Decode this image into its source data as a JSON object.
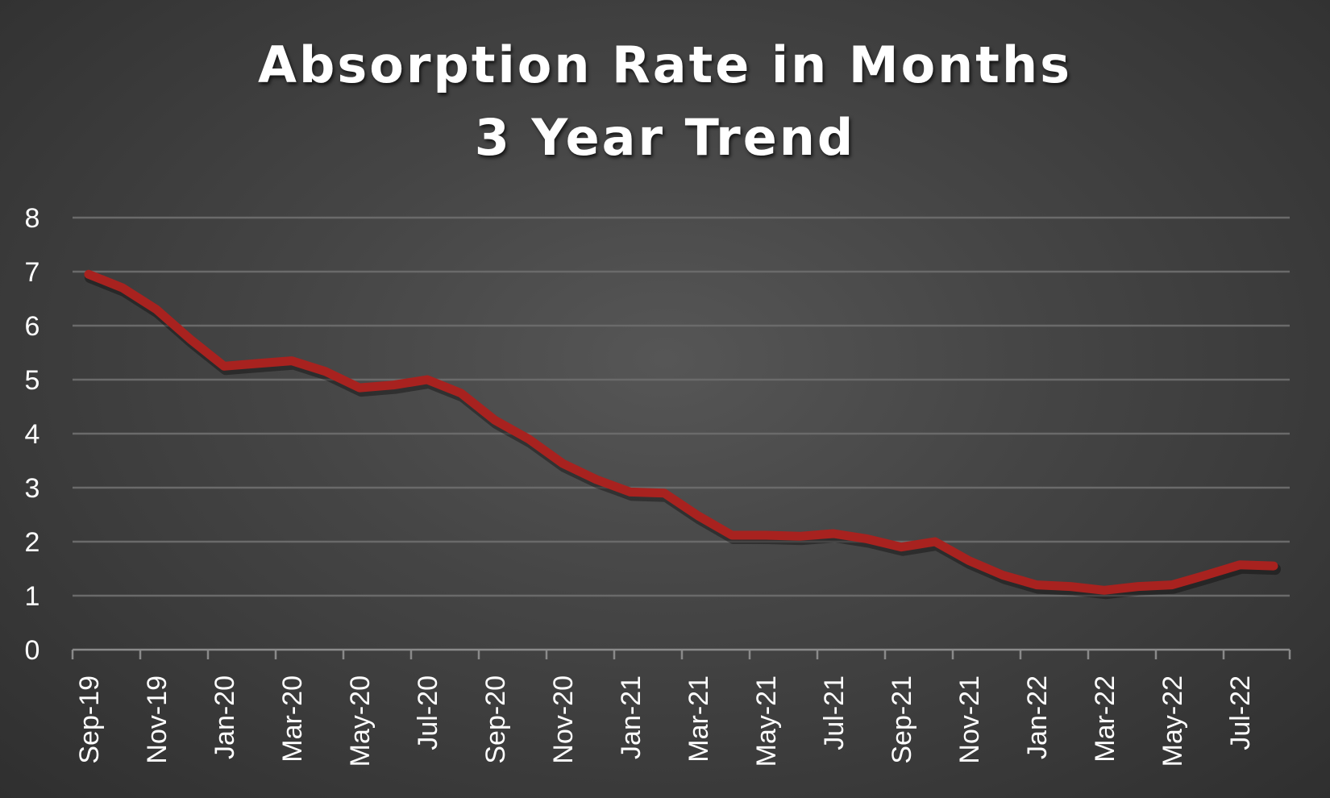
{
  "chart_data": {
    "type": "line",
    "title_lines": [
      "Absorption Rate in Months",
      "3 Year Trend"
    ],
    "xlabel": "",
    "ylabel": "",
    "ylim": [
      0,
      8
    ],
    "y_ticks": [
      "0",
      "1",
      "2",
      "3",
      "4",
      "5",
      "6",
      "7",
      "8"
    ],
    "x_tick_labels": [
      "Sep-19",
      "Nov-19",
      "Jan-20",
      "Mar-20",
      "May-20",
      "Jul-20",
      "Sep-20",
      "Nov-20",
      "Jan-21",
      "Mar-21",
      "May-21",
      "Jul-21",
      "Sep-21",
      "Nov-21",
      "Jan-22",
      "Mar-22",
      "May-22",
      "Jul-22"
    ],
    "x": [
      "Sep-19",
      "Oct-19",
      "Nov-19",
      "Dec-19",
      "Jan-20",
      "Feb-20",
      "Mar-20",
      "Apr-20",
      "May-20",
      "Jun-20",
      "Jul-20",
      "Aug-20",
      "Sep-20",
      "Oct-20",
      "Nov-20",
      "Dec-20",
      "Jan-21",
      "Feb-21",
      "Mar-21",
      "Apr-21",
      "May-21",
      "Jun-21",
      "Jul-21",
      "Aug-21",
      "Sep-21",
      "Oct-21",
      "Nov-21",
      "Dec-21",
      "Jan-22",
      "Feb-22",
      "Mar-22",
      "Apr-22",
      "May-22",
      "Jun-22",
      "Jul-22",
      "Aug-22"
    ],
    "series": [
      {
        "values": [
          6.95,
          6.7,
          6.3,
          5.75,
          5.25,
          5.3,
          5.35,
          5.15,
          4.85,
          4.9,
          5.0,
          4.75,
          4.25,
          3.9,
          3.45,
          3.15,
          2.92,
          2.9,
          2.48,
          2.12,
          2.12,
          2.1,
          2.15,
          2.05,
          1.9,
          2.0,
          1.65,
          1.38,
          1.2,
          1.17,
          1.1,
          1.17,
          1.2,
          1.38,
          1.57,
          1.55
        ],
        "color": "#a8221f"
      }
    ],
    "grid": true,
    "legend": "none",
    "colors": {
      "gridline": "#6a6a6a",
      "axis": "#8a8a8a",
      "text": "#ffffff"
    }
  }
}
